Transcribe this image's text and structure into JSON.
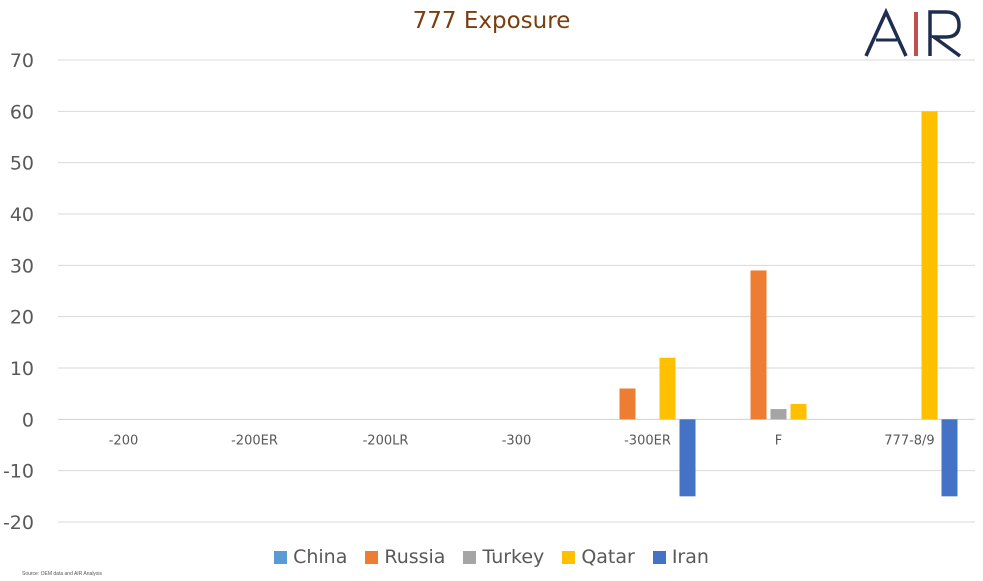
{
  "chart_data": {
    "type": "bar",
    "title": "777 Exposure",
    "categories": [
      "-200",
      "-200ER",
      "-200LR",
      "-300",
      "-300ER",
      "F",
      "777-8/9"
    ],
    "series": [
      {
        "name": "China",
        "color": "#5b9bd5",
        "values": [
          0,
          0,
          0,
          0,
          0,
          0,
          0
        ]
      },
      {
        "name": "Russia",
        "color": "#ed7d31",
        "values": [
          0,
          0,
          0,
          0,
          6,
          29,
          0
        ]
      },
      {
        "name": "Turkey",
        "color": "#a5a5a5",
        "values": [
          0,
          0,
          0,
          0,
          0,
          2,
          0
        ]
      },
      {
        "name": "Qatar",
        "color": "#ffc000",
        "values": [
          0,
          0,
          0,
          0,
          12,
          3,
          60
        ]
      },
      {
        "name": "Iran",
        "color": "#4472c4",
        "values": [
          0,
          0,
          0,
          0,
          -15,
          0,
          -15
        ]
      }
    ],
    "y_ticks": [
      "70",
      "60",
      "50",
      "40",
      "30",
      "20",
      "10",
      "0",
      "-10",
      "-20"
    ],
    "ylim": [
      -20,
      70
    ],
    "grid": true,
    "legend_position": "bottom"
  },
  "logo": {
    "text": "AIR",
    "left_color": "#1f2d4e",
    "right_color": "#1f2d4e",
    "bar_color": "#c0504d"
  },
  "source_note": "Source: OEM data and AIR Analysis"
}
